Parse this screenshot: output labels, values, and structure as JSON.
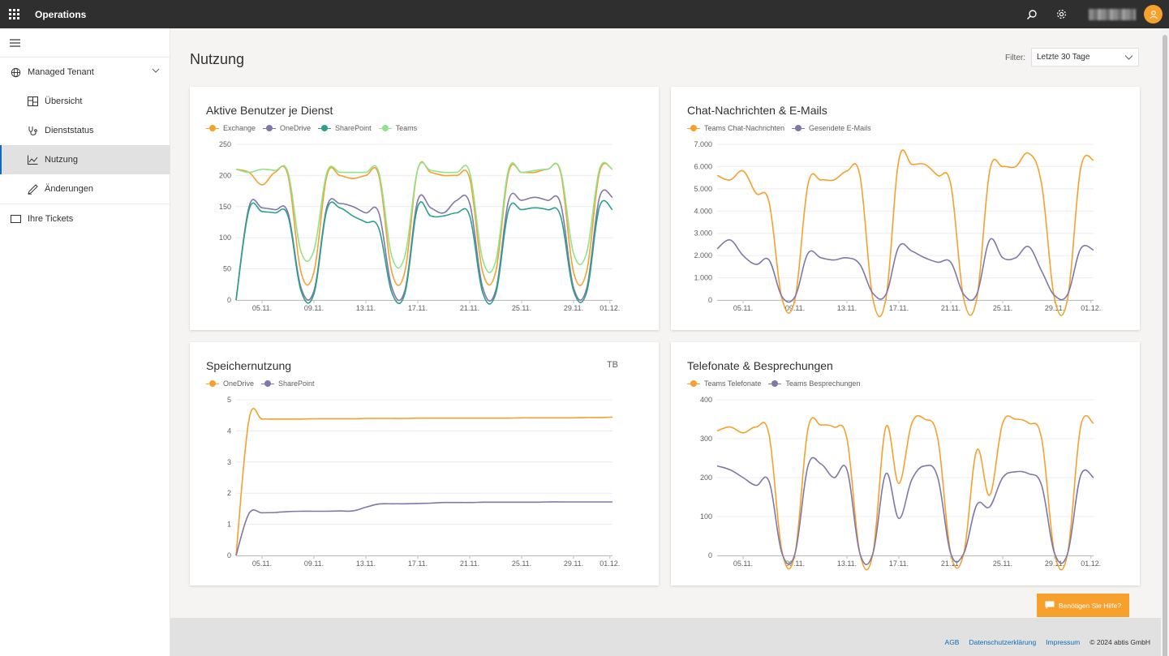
{
  "app": {
    "title": "Operations"
  },
  "colors": {
    "orange": "#f7a02c",
    "purple": "#7f78a8",
    "teal": "#2ba08c",
    "green": "#8fe38a",
    "accent": "#0f6cbd"
  },
  "sidebar": {
    "group": {
      "label": "Managed Tenant",
      "icon": "globe-icon"
    },
    "items": [
      {
        "label": "Übersicht",
        "icon": "dashboard-icon",
        "active": false
      },
      {
        "label": "Dienststatus",
        "icon": "stethoscope-icon",
        "active": false
      },
      {
        "label": "Nutzung",
        "icon": "chart-icon",
        "active": true
      },
      {
        "label": "Änderungen",
        "icon": "pen-icon",
        "active": false
      }
    ],
    "tickets": {
      "label": "Ihre Tickets",
      "icon": "ticket-icon"
    }
  },
  "page": {
    "title": "Nutzung",
    "filter_label": "Filter:",
    "filter_value": "Letzte 30 Tage"
  },
  "chart_data": [
    {
      "type": "line",
      "title": "Aktive Benutzer je Dienst",
      "x_ticks": [
        "05.11.",
        "09.11.",
        "13.11.",
        "17.11.",
        "21.11.",
        "25.11.",
        "29.11.",
        "01.12."
      ],
      "ylim": [
        0,
        250
      ],
      "y_ticks": [
        0,
        50,
        100,
        150,
        200,
        250
      ],
      "y_tick_labels": [
        "0",
        "50",
        "100",
        "150",
        "200",
        "250"
      ],
      "grid": true,
      "legend_position": "top-left",
      "series": [
        {
          "name": "Exchange",
          "color": "#f7a02c",
          "values": [
            210,
            205,
            185,
            205,
            200,
            45,
            45,
            200,
            200,
            195,
            200,
            200,
            45,
            45,
            210,
            205,
            200,
            200,
            195,
            45,
            45,
            205,
            205,
            205,
            210,
            205,
            45,
            45,
            205,
            210
          ]
        },
        {
          "name": "OneDrive",
          "color": "#7f78a8",
          "values": [
            0,
            150,
            148,
            145,
            140,
            20,
            15,
            150,
            155,
            150,
            140,
            140,
            20,
            15,
            160,
            148,
            140,
            160,
            155,
            20,
            15,
            160,
            160,
            165,
            160,
            155,
            20,
            18,
            165,
            165
          ]
        },
        {
          "name": "SharePoint",
          "color": "#2ba08c",
          "values": [
            0,
            145,
            142,
            140,
            135,
            15,
            10,
            145,
            148,
            135,
            125,
            115,
            12,
            10,
            150,
            135,
            135,
            140,
            135,
            12,
            10,
            145,
            145,
            148,
            145,
            135,
            15,
            12,
            150,
            145
          ]
        },
        {
          "name": "Teams",
          "color": "#8fe38a",
          "values": [
            210,
            205,
            210,
            208,
            205,
            78,
            80,
            205,
            205,
            205,
            205,
            205,
            70,
            70,
            210,
            208,
            205,
            205,
            205,
            65,
            62,
            210,
            205,
            208,
            210,
            208,
            75,
            75,
            210,
            210
          ]
        }
      ]
    },
    {
      "type": "line",
      "title": "Chat-Nachrichten & E-Mails",
      "x_ticks": [
        "05.11.",
        "09.11.",
        "13.11.",
        "17.11.",
        "21.11.",
        "25.11.",
        "29.11.",
        "01.12."
      ],
      "ylim": [
        0,
        7000
      ],
      "y_ticks": [
        0,
        1000,
        2000,
        3000,
        4000,
        5000,
        6000,
        7000
      ],
      "y_tick_labels": [
        "0",
        "1.000",
        "2.000",
        "3.000",
        "4.000",
        "5.000",
        "6.000",
        "7.000"
      ],
      "grid": true,
      "legend_position": "top-left",
      "series": [
        {
          "name": "Teams Chat-Nachrichten",
          "color": "#f7a02c",
          "values": [
            5600,
            5400,
            5800,
            4800,
            4400,
            50,
            50,
            5200,
            5400,
            5400,
            5800,
            5600,
            50,
            50,
            6300,
            6100,
            6100,
            5600,
            5200,
            50,
            50,
            5800,
            6000,
            6000,
            6600,
            5200,
            50,
            50,
            5900,
            6300
          ]
        },
        {
          "name": "Gesendete E-Mails",
          "color": "#7f78a8",
          "values": [
            2300,
            2700,
            2000,
            1600,
            1800,
            150,
            150,
            2100,
            1900,
            1800,
            1900,
            1600,
            300,
            250,
            2400,
            2200,
            1900,
            1700,
            1700,
            250,
            250,
            2700,
            1900,
            1900,
            2400,
            1300,
            200,
            250,
            2300,
            2250
          ]
        }
      ]
    },
    {
      "type": "line",
      "title": "Speichernutzung",
      "unit": "TB",
      "x_ticks": [
        "05.11.",
        "09.11.",
        "13.11.",
        "17.11.",
        "21.11.",
        "25.11.",
        "29.11.",
        "01.12."
      ],
      "ylim": [
        0,
        5
      ],
      "y_ticks": [
        0,
        1,
        2,
        3,
        4,
        5
      ],
      "y_tick_labels": [
        "0",
        "1",
        "2",
        "3",
        "4",
        "5"
      ],
      "grid": true,
      "legend_position": "top-left",
      "series": [
        {
          "name": "OneDrive",
          "color": "#f7a02c",
          "values": [
            0,
            4.37,
            4.38,
            4.38,
            4.38,
            4.38,
            4.39,
            4.39,
            4.39,
            4.39,
            4.4,
            4.4,
            4.4,
            4.4,
            4.41,
            4.41,
            4.41,
            4.41,
            4.41,
            4.41,
            4.41,
            4.41,
            4.42,
            4.42,
            4.42,
            4.42,
            4.42,
            4.43,
            4.43,
            4.44
          ]
        },
        {
          "name": "SharePoint",
          "color": "#7f78a8",
          "values": [
            0,
            1.35,
            1.37,
            1.38,
            1.41,
            1.42,
            1.42,
            1.42,
            1.43,
            1.43,
            1.55,
            1.65,
            1.66,
            1.66,
            1.67,
            1.68,
            1.7,
            1.7,
            1.7,
            1.71,
            1.71,
            1.71,
            1.71,
            1.71,
            1.72,
            1.72,
            1.72,
            1.72,
            1.72,
            1.72
          ]
        }
      ]
    },
    {
      "type": "line",
      "title": "Telefonate & Besprechungen",
      "x_ticks": [
        "05.11.",
        "09.11.",
        "13.11.",
        "17.11.",
        "21.11.",
        "25.11.",
        "29.11.",
        "01.12."
      ],
      "ylim": [
        0,
        400
      ],
      "y_ticks": [
        0,
        100,
        200,
        300,
        400
      ],
      "y_tick_labels": [
        "0",
        "100",
        "200",
        "300",
        "400"
      ],
      "grid": true,
      "legend_position": "top-left",
      "series": [
        {
          "name": "Teams Telefonate",
          "color": "#f7a02c",
          "values": [
            320,
            330,
            315,
            330,
            310,
            10,
            5,
            325,
            335,
            330,
            300,
            5,
            5,
            330,
            185,
            340,
            350,
            300,
            5,
            5,
            270,
            155,
            340,
            350,
            340,
            300,
            5,
            5,
            330,
            340
          ]
        },
        {
          "name": "Teams Besprechungen",
          "color": "#7f78a8",
          "values": [
            230,
            220,
            200,
            180,
            190,
            5,
            5,
            230,
            235,
            200,
            220,
            5,
            5,
            210,
            95,
            195,
            230,
            200,
            5,
            5,
            130,
            125,
            200,
            215,
            210,
            180,
            5,
            5,
            205,
            200
          ]
        }
      ]
    }
  ],
  "help": {
    "label": "Benötigen Sie Hilfe?"
  },
  "footer": {
    "links": [
      "AGB",
      "Datenschutzerklärung",
      "Impressum"
    ],
    "copyright": "© 2024 abtis GmbH"
  }
}
